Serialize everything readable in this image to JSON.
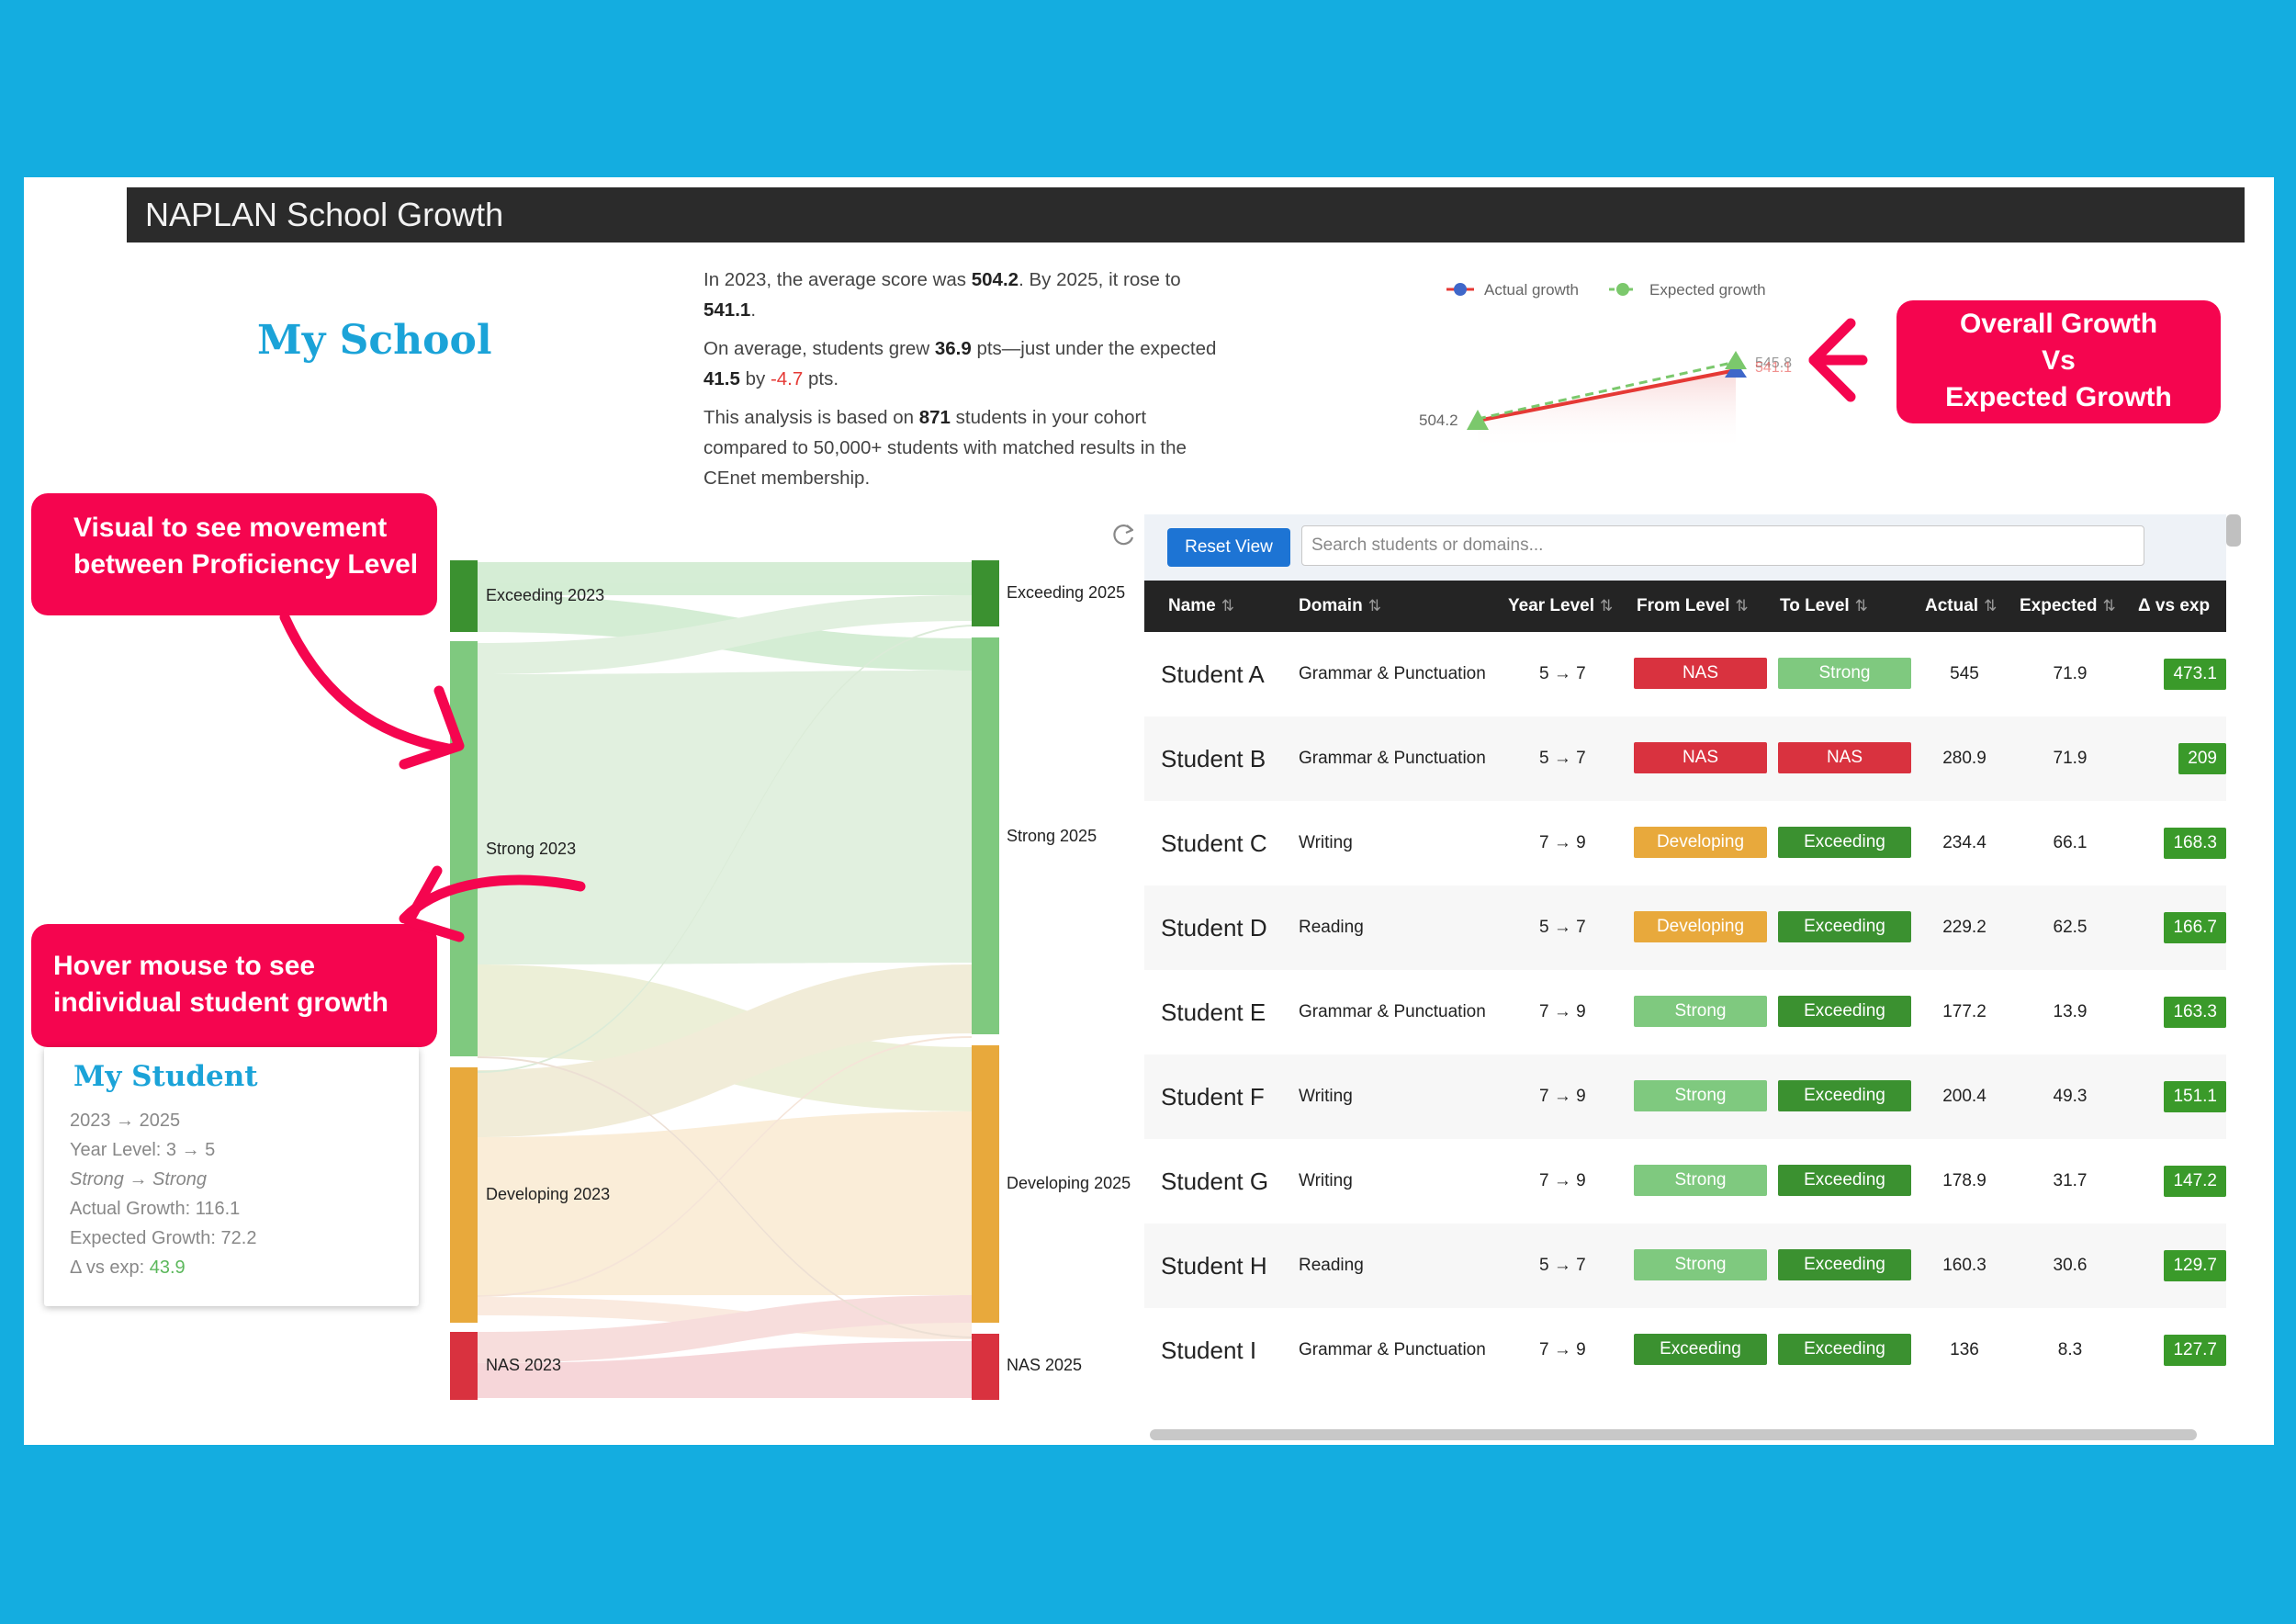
{
  "header": {
    "title": "NAPLAN School Growth"
  },
  "school_title": "My School",
  "summary": {
    "p1_a": "In 2023, the average score was ",
    "p1_v1": "504.2",
    "p1_b": ". By 2025, it rose to ",
    "p1_v2": "541.1",
    "p1_c": ".",
    "p2_a": "On average, students grew ",
    "p2_v1": "36.9",
    "p2_b": " pts—just under the expected ",
    "p2_v2": "41.5",
    "p2_c": " by ",
    "p2_v3": "-4.7",
    "p2_d": " pts.",
    "p3_a": "This analysis is based on ",
    "p3_v1": "871",
    "p3_b": " students in your cohort compared to 50,000+ students with matched results in the CEnet membership."
  },
  "growth_chart": {
    "legend": {
      "actual": "Actual growth",
      "expected": "Expected growth"
    },
    "start_label": "504.2",
    "end_label_expected": "545.8",
    "end_label_actual": "541.1",
    "colors": {
      "actual": "#e53935",
      "actual_marker": "#3f67c9",
      "expected": "#7bc86c"
    }
  },
  "callouts": {
    "growth": [
      "Overall Growth",
      "Vs",
      "Expected Growth"
    ],
    "visual": [
      "Visual to see movement",
      "between Proficiency Level"
    ],
    "hover": [
      "Hover mouse to see",
      "individual student growth"
    ]
  },
  "sankey": {
    "left_nodes": [
      "Exceeding 2023",
      "Strong 2023",
      "Developing 2023",
      "NAS 2023"
    ],
    "right_nodes": [
      "Exceeding 2025",
      "Strong 2025",
      "Developing 2025",
      "NAS 2025"
    ],
    "colors": {
      "Exceeding": "#3b9130",
      "Strong": "#7fc97f",
      "Developing": "#e8a93c",
      "NAS": "#d9323f"
    }
  },
  "tooltip": {
    "title": "My Student",
    "years": "2023 → 2025",
    "year_level": "Year Level: 3 → 5",
    "levels": "Strong → Strong",
    "actual": "Actual Growth: 116.1",
    "expected": "Expected Growth: 72.2",
    "delta_label": "Δ vs exp: ",
    "delta_value": "43.9"
  },
  "table": {
    "reset_label": "Reset View",
    "search_placeholder": "Search students or domains...",
    "sort_glyph": "⇅",
    "headers": {
      "name": "Name",
      "domain": "Domain",
      "year": "Year Level",
      "from": "From Level",
      "to": "To Level",
      "actual": "Actual",
      "expected": "Expected",
      "delta": "Δ vs exp"
    },
    "level_colors": {
      "NAS": "#d9323f",
      "Developing": "#e8a93c",
      "Strong": "#7fc97f",
      "Exceeding": "#3b9130"
    },
    "rows": [
      {
        "name": "Student A",
        "domain": "Grammar & Punctuation",
        "year": "5 → 7",
        "from": "NAS",
        "to": "Strong",
        "actual": "545",
        "expected": "71.9",
        "delta": "473.1"
      },
      {
        "name": "Student B",
        "domain": "Grammar & Punctuation",
        "year": "5 → 7",
        "from": "NAS",
        "to": "NAS",
        "actual": "280.9",
        "expected": "71.9",
        "delta": "209"
      },
      {
        "name": "Student C",
        "domain": "Writing",
        "year": "7 → 9",
        "from": "Developing",
        "to": "Exceeding",
        "actual": "234.4",
        "expected": "66.1",
        "delta": "168.3"
      },
      {
        "name": "Student D",
        "domain": "Reading",
        "year": "5 → 7",
        "from": "Developing",
        "to": "Exceeding",
        "actual": "229.2",
        "expected": "62.5",
        "delta": "166.7"
      },
      {
        "name": "Student E",
        "domain": "Grammar & Punctuation",
        "year": "7 → 9",
        "from": "Strong",
        "to": "Exceeding",
        "actual": "177.2",
        "expected": "13.9",
        "delta": "163.3"
      },
      {
        "name": "Student F",
        "domain": "Writing",
        "year": "7 → 9",
        "from": "Strong",
        "to": "Exceeding",
        "actual": "200.4",
        "expected": "49.3",
        "delta": "151.1"
      },
      {
        "name": "Student G",
        "domain": "Writing",
        "year": "7 → 9",
        "from": "Strong",
        "to": "Exceeding",
        "actual": "178.9",
        "expected": "31.7",
        "delta": "147.2"
      },
      {
        "name": "Student H",
        "domain": "Reading",
        "year": "5 → 7",
        "from": "Strong",
        "to": "Exceeding",
        "actual": "160.3",
        "expected": "30.6",
        "delta": "129.7"
      },
      {
        "name": "Student I",
        "domain": "Grammar & Punctuation",
        "year": "7 → 9",
        "from": "Exceeding",
        "to": "Exceeding",
        "actual": "136",
        "expected": "8.3",
        "delta": "127.7"
      }
    ]
  }
}
